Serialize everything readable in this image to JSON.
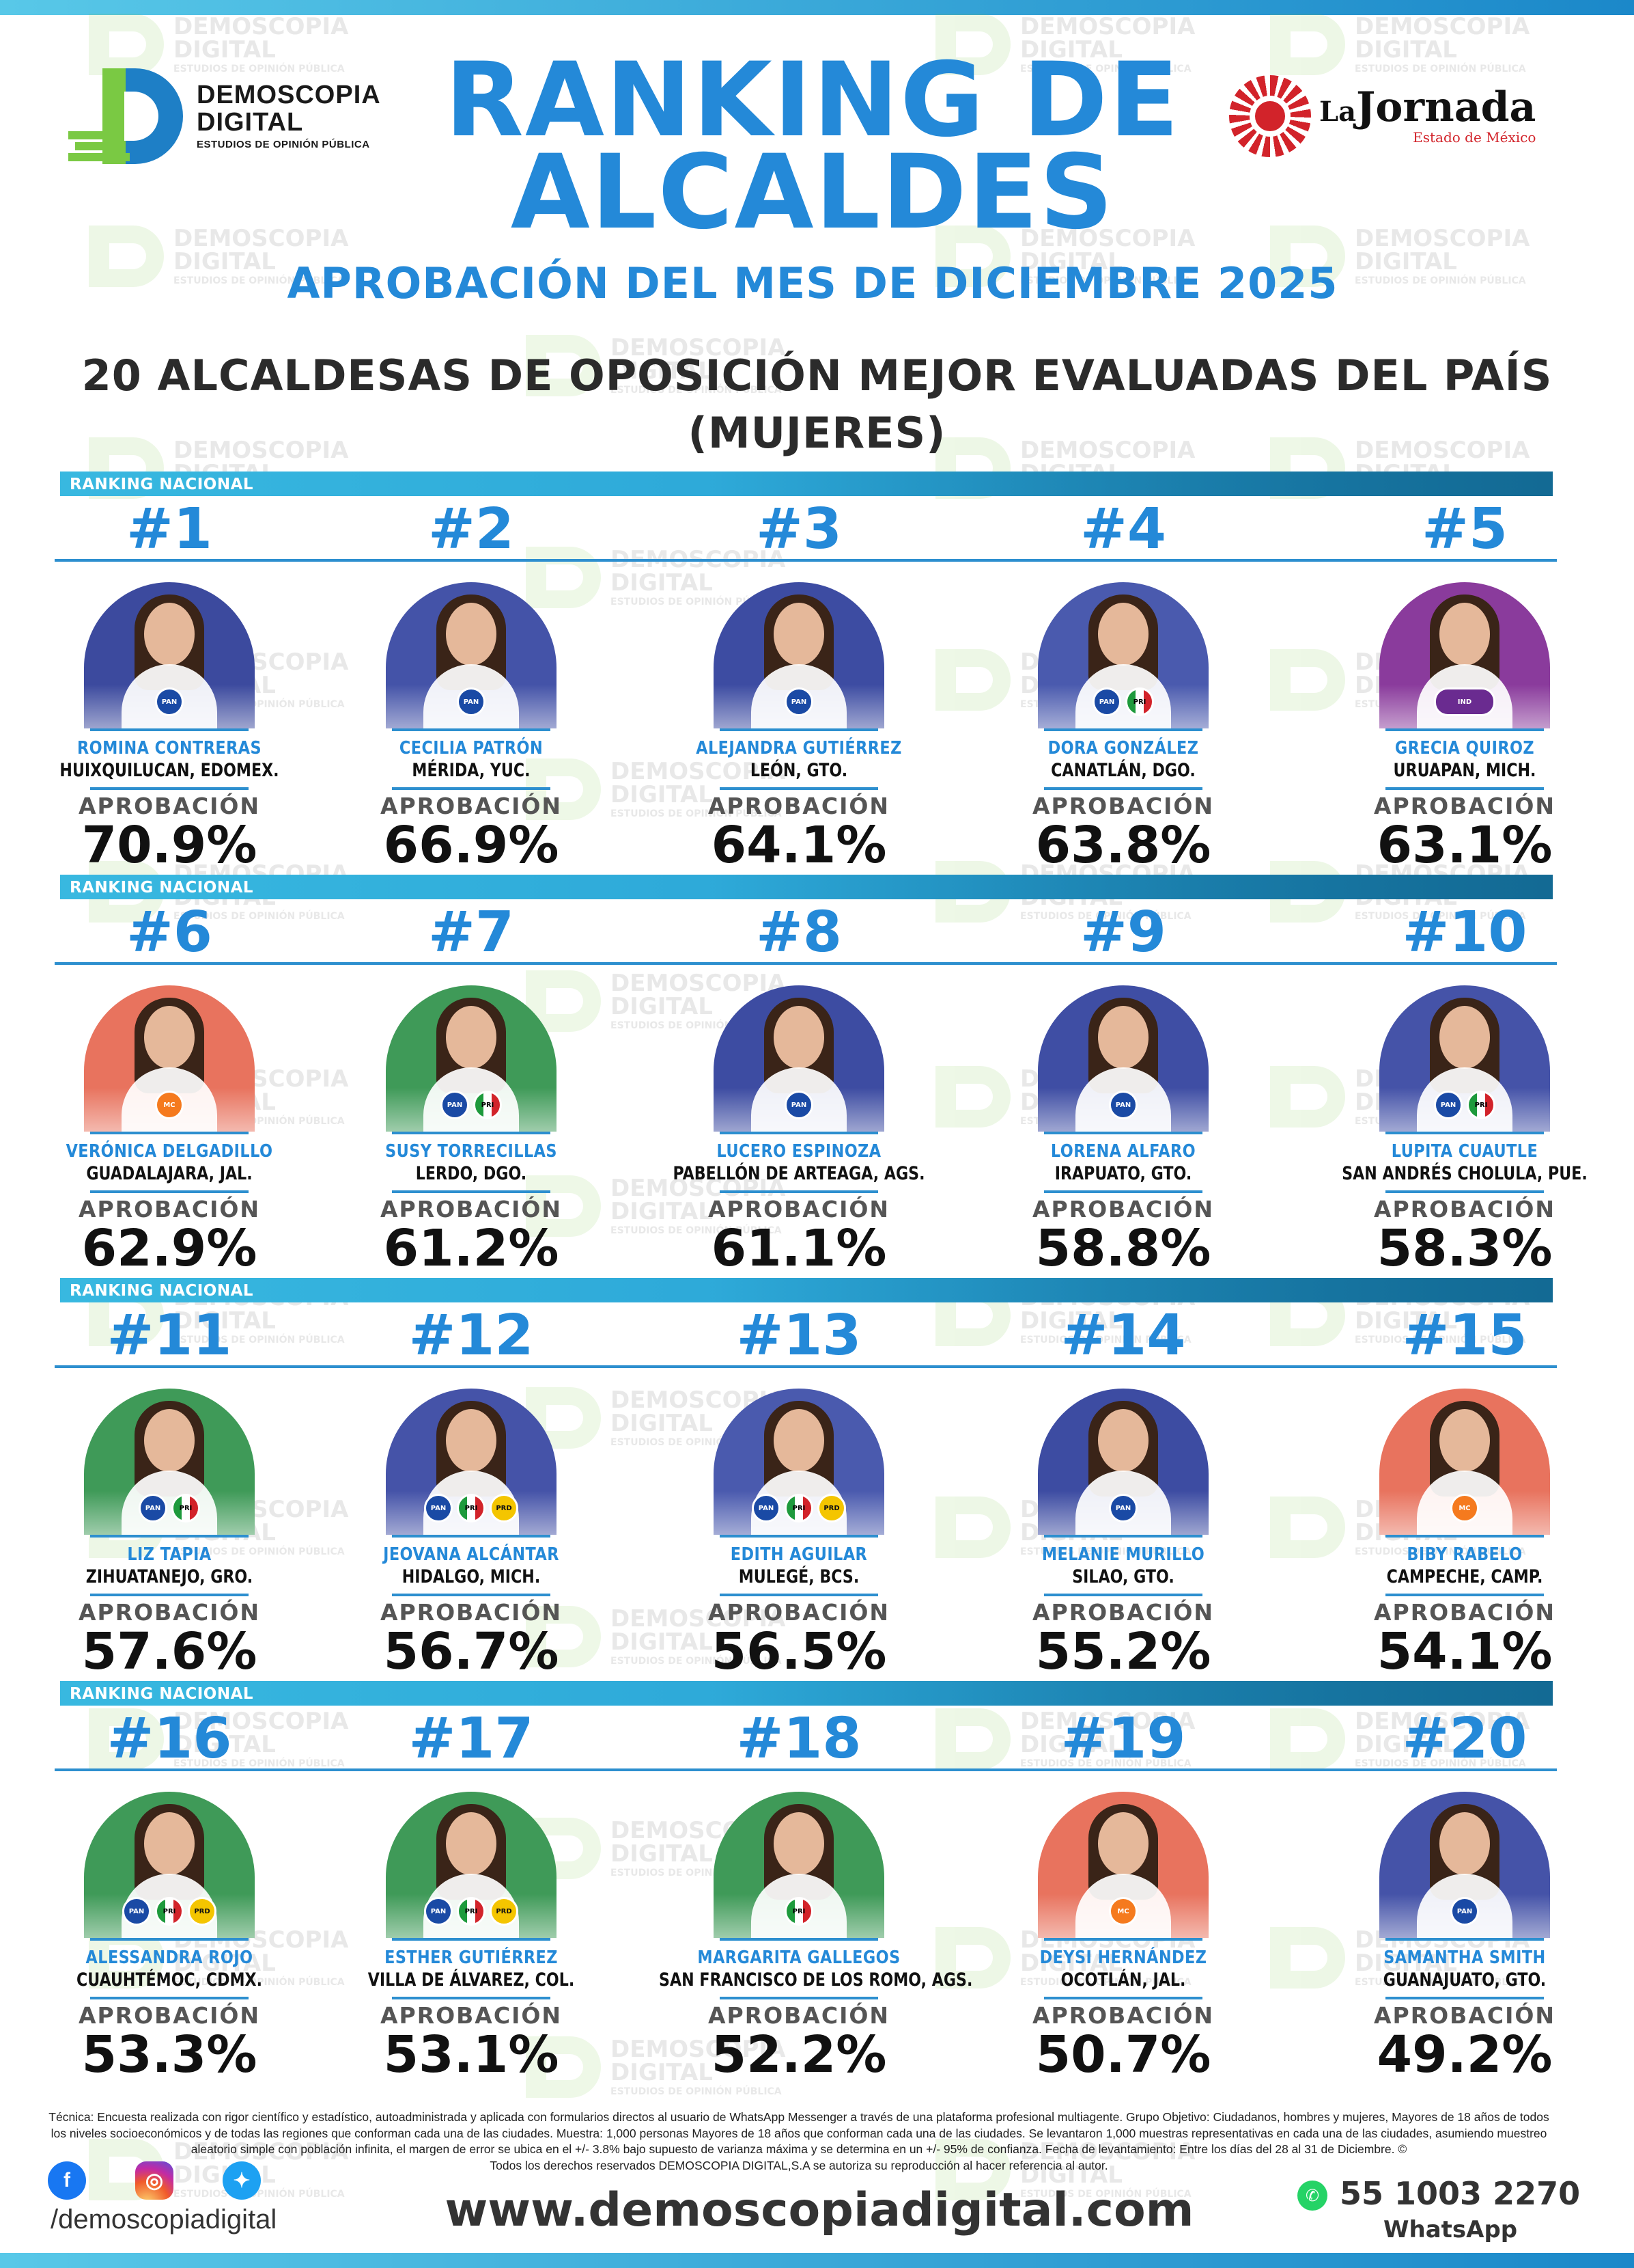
{
  "header": {
    "brand_left": {
      "line1": "DEMOSCOPIA",
      "line2": "DIGITAL",
      "line3": "ESTUDIOS DE OPINIÓN PÚBLICA"
    },
    "brand_right": {
      "prefix": "La",
      "name": "Jornada",
      "region": "Estado de México"
    },
    "title_line1": "RANKING DE",
    "title_line2": "ALCALDES",
    "subtitle": "APROBACIÓN DEL MES DE DICIEMBRE 2025",
    "heading_line1": "20 ALCALDESAS DE OPOSICIÓN MEJOR EVALUADAS DEL PAÍS",
    "heading_line2": "(MUJERES)"
  },
  "watermark": {
    "line1": "DEMOSCOPIA",
    "line2": "DIGITAL",
    "line3": "ESTUDIOS DE OPINIÓN PÚBLICA"
  },
  "rank_label": "RANKING NACIONAL",
  "approval_label": "APROBACIÓN",
  "colors": {
    "accent": "#2489d8",
    "bar": "#2aa4d6",
    "pan": "#1a4aa5",
    "pri_green": "#1e9a3c",
    "pri_red": "#d2232a",
    "prd": "#f4c500",
    "mc": "#f57a1e"
  },
  "mayors": [
    {
      "rank": "#1",
      "name": "ROMINA CONTRERAS",
      "place": "HUIXQUILUCAN, EDOMEX.",
      "approval": "70.9%",
      "bg": "#3c4a9e",
      "badges": [
        "PAN"
      ]
    },
    {
      "rank": "#2",
      "name": "CECILIA PATRÓN",
      "place": "MÉRIDA, YUC.",
      "approval": "66.9%",
      "bg": "#4453a8",
      "badges": [
        "PAN"
      ]
    },
    {
      "rank": "#3",
      "name": "ALEJANDRA GUTIÉRREZ",
      "place": "LEÓN, GTO.",
      "approval": "64.1%",
      "bg": "#3d4ca2",
      "badges": [
        "PAN"
      ]
    },
    {
      "rank": "#4",
      "name": "DORA GONZÁLEZ",
      "place": "CANATLÁN, DGO.",
      "approval": "63.8%",
      "bg": "#4a5aae",
      "badges": [
        "PAN",
        "PRI"
      ]
    },
    {
      "rank": "#5",
      "name": "GRECIA QUIROZ",
      "place": "URUAPAN, MICH.",
      "approval": "63.1%",
      "bg": "#8a3b9c",
      "badges": [
        "IND"
      ]
    },
    {
      "rank": "#6",
      "name": "VERÓNICA DELGADILLO",
      "place": "GUADALAJARA, JAL.",
      "approval": "62.9%",
      "bg": "#e8735e",
      "badges": [
        "MC"
      ]
    },
    {
      "rank": "#7",
      "name": "SUSY TORRECILLAS",
      "place": "LERDO, DGO.",
      "approval": "61.2%",
      "bg": "#3f9a58",
      "badges": [
        "PAN",
        "PRI"
      ]
    },
    {
      "rank": "#8",
      "name": "LUCERO ESPINOZA",
      "place": "PABELLÓN DE ARTEAGA, AGS.",
      "approval": "61.1%",
      "bg": "#3d4ca2",
      "badges": [
        "PAN"
      ]
    },
    {
      "rank": "#9",
      "name": "LORENA ALFARO",
      "place": "IRAPUATO, GTO.",
      "approval": "58.8%",
      "bg": "#3f4ea4",
      "badges": [
        "PAN"
      ]
    },
    {
      "rank": "#10",
      "name": "LUPITA CUAUTLE",
      "place": "SAN ANDRÉS CHOLULA, PUE.",
      "approval": "58.3%",
      "bg": "#4553a8",
      "badges": [
        "PAN",
        "PRI"
      ]
    },
    {
      "rank": "#11",
      "name": "LIZ TAPIA",
      "place": "ZIHUATANEJO, GRO.",
      "approval": "57.6%",
      "bg": "#3f9a58",
      "badges": [
        "PAN",
        "PRI"
      ]
    },
    {
      "rank": "#12",
      "name": "JEOVANA ALCÁNTAR",
      "place": "HIDALGO, MICH.",
      "approval": "56.7%",
      "bg": "#4553a8",
      "badges": [
        "PAN",
        "PRI",
        "PRD"
      ]
    },
    {
      "rank": "#13",
      "name": "EDITH AGUILAR",
      "place": "MULEGÉ, BCS.",
      "approval": "56.5%",
      "bg": "#4a5aae",
      "badges": [
        "PAN",
        "PRI",
        "PRD"
      ]
    },
    {
      "rank": "#14",
      "name": "MELANIE MURILLO",
      "place": "SILAO, GTO.",
      "approval": "55.2%",
      "bg": "#3d4ca2",
      "badges": [
        "PAN"
      ]
    },
    {
      "rank": "#15",
      "name": "BIBY RABELO",
      "place": "CAMPECHE, CAMP.",
      "approval": "54.1%",
      "bg": "#e8735e",
      "badges": [
        "MC"
      ]
    },
    {
      "rank": "#16",
      "name": "ALESSANDRA ROJO",
      "place": "CUAUHTÉMOC, CDMX.",
      "approval": "53.3%",
      "bg": "#3f9a58",
      "badges": [
        "PAN",
        "PRI",
        "PRD"
      ]
    },
    {
      "rank": "#17",
      "name": "ESTHER GUTIÉRREZ",
      "place": "VILLA DE ÁLVAREZ, COL.",
      "approval": "53.1%",
      "bg": "#3f9a58",
      "badges": [
        "PAN",
        "PRI",
        "PRD"
      ]
    },
    {
      "rank": "#18",
      "name": "MARGARITA GALLEGOS",
      "place": "SAN FRANCISCO DE LOS ROMO, AGS.",
      "approval": "52.2%",
      "bg": "#3f9a58",
      "badges": [
        "PRI"
      ]
    },
    {
      "rank": "#19",
      "name": "DEYSI HERNÁNDEZ",
      "place": "OCOTLÁN, JAL.",
      "approval": "50.7%",
      "bg": "#e8735e",
      "badges": [
        "MC"
      ]
    },
    {
      "rank": "#20",
      "name": "SAMANTHA SMITH",
      "place": "GUANAJUATO, GTO.",
      "approval": "49.2%",
      "bg": "#4553a8",
      "badges": [
        "PAN"
      ]
    }
  ],
  "badge_labels": {
    "PAN": "PAN",
    "PRI": "PRI",
    "PRD": "PRD",
    "MC": "MC",
    "IND": "IND"
  },
  "footer": {
    "note": "Técnica: Encuesta realizada con rigor científico y estadístico, autoadministrada y aplicada con formularios directos al usuario de WhatsApp Messenger a través de una plataforma profesional multiagente. Grupo Objetivo: Ciudadanos, hombres y mujeres, Mayores de 18 años de todos los niveles socioeconómicos y de todas las regiones que conforman cada una de las ciudades. Muestra: 1,000 personas Mayores de 18 años que conforman cada una de las ciudades. Se levantaron 1,000 muestras representativas en cada una de las ciudades, asumiendo muestreo aleatorio simple con población infinita, el margen de error se ubica en el +/- 3.8% bajo supuesto de varianza máxima y se determina en un +/- 95% de confianza. Fecha de levantamiento: Entre los días del 28 al 31 de Diciembre. ©",
    "rights": "Todos los derechos reservados DEMOSCOPIA DIGITAL,S.A se autoriza su reproducción al hacer referencia al autor.",
    "handle": "/demoscopiadigital",
    "website": "www.demoscopiadigital.com",
    "phone": "55 1003 2270",
    "whatsapp_label": "WhatsApp"
  }
}
